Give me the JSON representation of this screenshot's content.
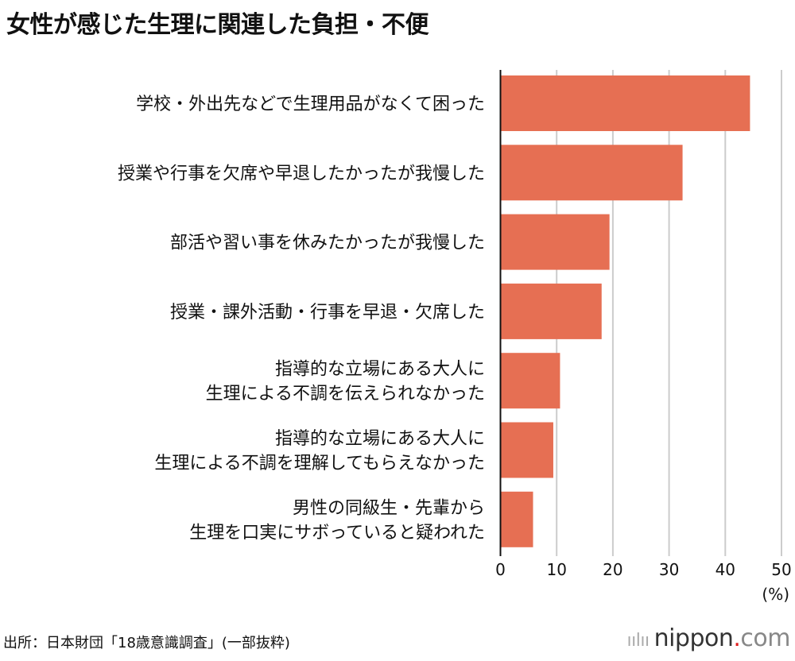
{
  "chart_data": {
    "type": "bar",
    "orientation": "horizontal",
    "title": "女性が感じた生理に関連した負担・不便",
    "categories": [
      [
        "学校・外出先などで生理用品がなくて困った"
      ],
      [
        "授業や行事を欠席や早退したかったが我慢した"
      ],
      [
        "部活や習い事を休みたかったが我慢した"
      ],
      [
        "授業・課外活動・行事を早退・欠席した"
      ],
      [
        "指導的な立場にある大人に",
        "生理による不調を伝えられなかった"
      ],
      [
        "指導的な立場にある大人に",
        "生理による不調を理解してもらえなかった"
      ],
      [
        "男性の同級生・先輩から",
        "生理を口実にサボっていると疑われた"
      ]
    ],
    "values": [
      44.4,
      32.4,
      19.4,
      18.0,
      10.6,
      9.4,
      5.8
    ],
    "xlim": [
      0,
      50
    ],
    "xticks": [
      "0",
      "10",
      "20",
      "30",
      "40",
      "50"
    ],
    "xlabel": "(%)",
    "grid": true,
    "bar_color": "#e66f53",
    "grid_color": "#cccccc"
  },
  "source": "出所：日本財団「18歳意識調査」(一部抜粋)",
  "logo": {
    "bars": "ıılıı",
    "name": "nippon",
    "dot": ".",
    "com": "com"
  }
}
